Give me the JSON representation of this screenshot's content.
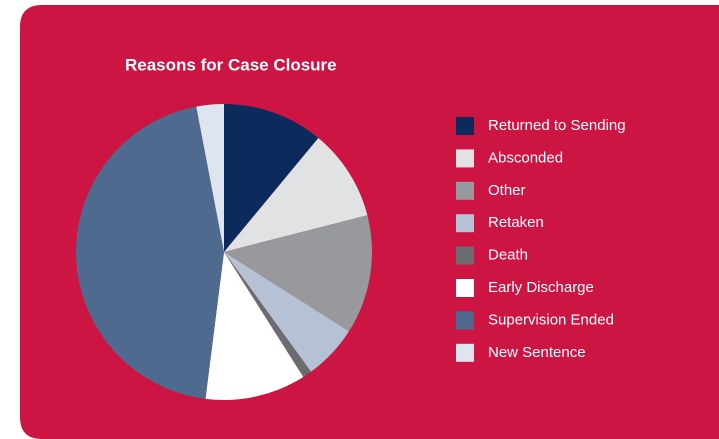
{
  "chart_data": {
    "type": "pie",
    "title": "Reasons for Case Closure",
    "categories": [
      "Returned to Sending",
      "Absconded",
      "Other",
      "Retaken",
      "Death",
      "Early Discharge",
      "Supervision Ended",
      "New Sentence"
    ],
    "values": [
      11,
      10,
      13,
      6,
      1,
      11,
      45,
      3
    ],
    "colors": [
      "#0d2a5c",
      "#e1e2e4",
      "#98999c",
      "#b5c1d4",
      "#6b6c6f",
      "#ffffff",
      "#4f6a8f",
      "#dfe5ee"
    ],
    "legend": "right"
  }
}
